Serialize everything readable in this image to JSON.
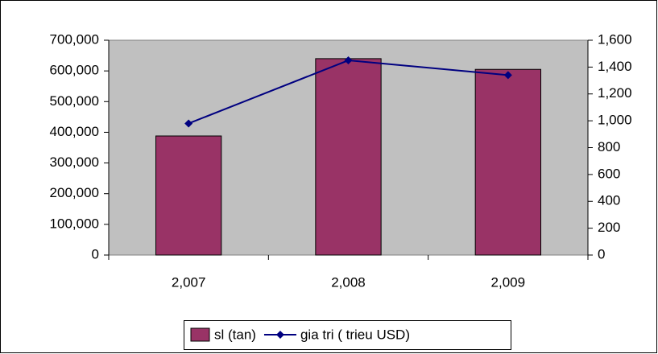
{
  "chart_data": {
    "type": "bar",
    "categories": [
      "2,007",
      "2,008",
      "2,009"
    ],
    "series": [
      {
        "name": "sl (tan)",
        "color": "#993366",
        "type": "bar",
        "values": [
          388000,
          640000,
          605000
        ]
      },
      {
        "name": "gia tri ( trieu USD)",
        "color": "#000080",
        "type": "line",
        "axis": "y2",
        "values": [
          980,
          1450,
          1340
        ]
      }
    ],
    "ylim": [
      0,
      700000
    ],
    "yticks": [
      0,
      {
        "value": 100000,
        "label": "100,000"
      },
      {
        "value": 200000,
        "label": "200,000"
      },
      {
        "value": 300000,
        "label": "300,000"
      },
      {
        "value": 400000,
        "label": "400,000"
      },
      {
        "value": 500000,
        "label": "500,000"
      },
      {
        "value": 600000,
        "label": "600,000"
      },
      {
        "value": 700000,
        "label": "700,000"
      }
    ],
    "y2lim": [
      0,
      1600
    ],
    "y2ticks": [
      0,
      200,
      400,
      600,
      800,
      {
        "value": 1000,
        "label": "1,000"
      },
      {
        "value": 1200,
        "label": "1,200"
      },
      {
        "value": 1400,
        "label": "1,400"
      },
      {
        "value": 1600,
        "label": "1,600"
      }
    ],
    "plot_background": "#c0c0c0",
    "legend": "bottom"
  }
}
